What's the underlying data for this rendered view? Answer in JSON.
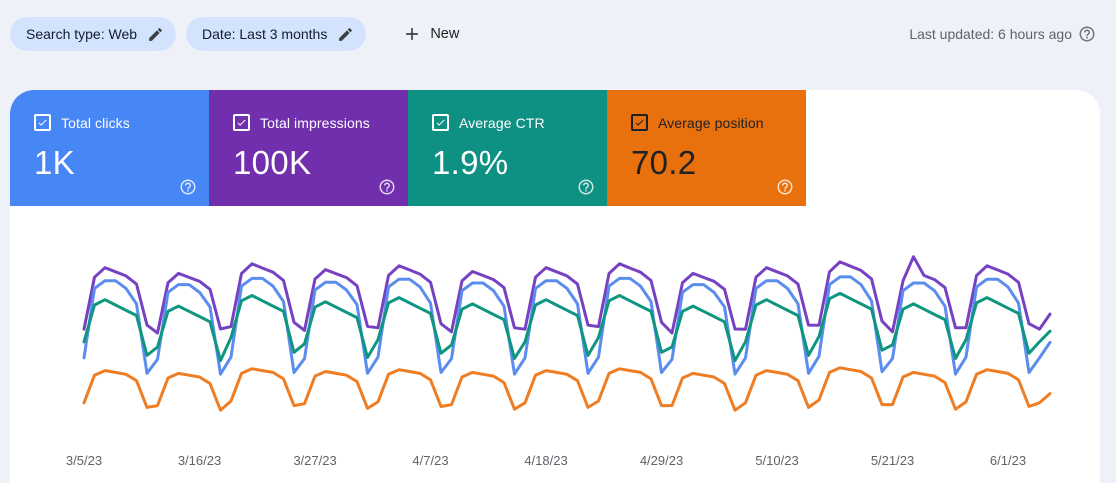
{
  "topbar": {
    "chips": [
      {
        "label": "Search type: Web"
      },
      {
        "label": "Date: Last 3 months"
      }
    ],
    "new_button": {
      "label": "New"
    },
    "last_updated": "Last updated: 6 hours ago"
  },
  "icons": {
    "help_glyph": "?"
  },
  "metric_cards": [
    {
      "id": "clicks",
      "label": "Total clicks",
      "value": "1K",
      "color": "#4786f5",
      "text_color": "#ffffff",
      "checked": true
    },
    {
      "id": "impressions",
      "label": "Total impressions",
      "value": "100K",
      "color": "#712fae",
      "text_color": "#ffffff",
      "checked": true
    },
    {
      "id": "ctr",
      "label": "Average CTR",
      "value": "1.9%",
      "color": "#0e9082",
      "text_color": "#ffffff",
      "checked": true
    },
    {
      "id": "position",
      "label": "Average position",
      "value": "70.2",
      "color": "#e8710d",
      "text_color": "#202124",
      "checked": true
    }
  ],
  "chart_data": {
    "type": "line",
    "x_start": "3/5/23",
    "x_end": "6/5/23",
    "interval": "daily",
    "points": 93,
    "x_ticks": [
      "3/5/23",
      "3/16/23",
      "3/27/23",
      "4/7/23",
      "4/18/23",
      "4/29/23",
      "5/10/23",
      "5/21/23",
      "6/1/23"
    ],
    "grid": false,
    "legend_position": "none",
    "series": [
      {
        "id": "impressions",
        "name": "Total impressions",
        "color": "#7642c2",
        "unit": "impressions",
        "values": [
          950,
          1330,
          1400,
          1370,
          1340,
          1280,
          980,
          922,
          1290,
          1358,
          1329,
          1300,
          1242,
          951,
          969,
          1357,
          1428,
          1397,
          1367,
          1306,
          1000,
          941,
          1317,
          1386,
          1356,
          1327,
          1267,
          970,
          960,
          1343,
          1414,
          1384,
          1353,
          1293,
          990,
          931,
          1303,
          1372,
          1343,
          1313,
          1254,
          960,
          950,
          1330,
          1400,
          1370,
          1340,
          1280,
          980,
          969,
          1357,
          1428,
          1397,
          1367,
          1306,
          1000,
          922,
          1290,
          1358,
          1329,
          1300,
          1242,
          951,
          950,
          1330,
          1400,
          1370,
          1340,
          1280,
          980,
          979,
          1370,
          1442,
          1411,
          1380,
          1318,
          1009,
          931,
          1303,
          1480,
          1343,
          1313,
          1254,
          960,
          960,
          1343,
          1414,
          1384,
          1353,
          1293,
          990,
          950,
          1060
        ]
      },
      {
        "id": "clicks",
        "name": "Total clicks",
        "color": "#5b8def",
        "unit": "clicks",
        "values": [
          7,
          16,
          17,
          17,
          16,
          14,
          5,
          6.8,
          15.5,
          16.5,
          16.5,
          15.5,
          13.6,
          4.9,
          7.1,
          16.3,
          17.3,
          17.3,
          16.3,
          14.3,
          5.1,
          6.9,
          15.8,
          16.8,
          16.8,
          15.8,
          13.9,
          5,
          7.1,
          16.2,
          17.2,
          17.2,
          16.2,
          14.1,
          5.1,
          6.9,
          15.7,
          16.7,
          16.7,
          15.7,
          13.7,
          4.9,
          7,
          16,
          17,
          17,
          16,
          14,
          5,
          7.1,
          16.3,
          17.3,
          17.3,
          16.3,
          14.3,
          5.1,
          6.8,
          15.5,
          16.5,
          16.5,
          15.5,
          13.6,
          4.9,
          7,
          16,
          17,
          17,
          16,
          14,
          5,
          7.2,
          16.5,
          17.5,
          17.5,
          16.5,
          14.4,
          5.2,
          6.9,
          15.7,
          16.7,
          16.7,
          15.7,
          13.7,
          4.9,
          7.1,
          16.2,
          17.2,
          17.2,
          16.2,
          14.1,
          5.1,
          7,
          9
        ]
      },
      {
        "id": "ctr",
        "name": "Average CTR",
        "color": "#0f9681",
        "unit": "%",
        "values": [
          1.75,
          2.1,
          2.15,
          2.1,
          2.05,
          2,
          1.62,
          1.7,
          2.04,
          2.09,
          2.04,
          1.99,
          1.94,
          1.57,
          1.79,
          2.14,
          2.19,
          2.14,
          2.09,
          2.04,
          1.65,
          1.73,
          2.08,
          2.13,
          2.08,
          2.03,
          1.98,
          1.6,
          1.77,
          2.12,
          2.17,
          2.12,
          2.07,
          2.02,
          1.64,
          1.72,
          2.06,
          2.11,
          2.06,
          2.01,
          1.96,
          1.59,
          1.75,
          2.1,
          2.15,
          2.1,
          2.05,
          2,
          1.62,
          1.79,
          2.14,
          2.19,
          2.14,
          2.09,
          2.04,
          1.65,
          1.7,
          2.04,
          2.09,
          2.04,
          1.99,
          1.94,
          1.57,
          1.75,
          2.1,
          2.15,
          2.1,
          2.05,
          2,
          1.62,
          1.8,
          2.16,
          2.21,
          2.16,
          2.11,
          2.06,
          1.67,
          1.72,
          2.06,
          2.11,
          2.06,
          2.01,
          1.96,
          1.59,
          1.77,
          2.12,
          2.17,
          2.12,
          2.07,
          2.02,
          1.64,
          1.75,
          1.85
        ]
      },
      {
        "id": "position",
        "name": "Average position",
        "color": "#ee7d23",
        "unit": "position",
        "invert": true,
        "values": [
          72.5,
          69.5,
          69,
          69.2,
          69.4,
          70.1,
          73,
          72.8,
          69.8,
          69.3,
          69.5,
          69.7,
          70.4,
          73.3,
          72.3,
          69.3,
          68.8,
          69,
          69.2,
          69.9,
          72.8,
          72.6,
          69.6,
          69.1,
          69.3,
          69.5,
          70.2,
          73.1,
          72.4,
          69.4,
          68.9,
          69.1,
          69.3,
          70,
          72.9,
          72.7,
          69.7,
          69.2,
          69.4,
          69.6,
          70.3,
          73.2,
          72.5,
          69.5,
          69,
          69.2,
          69.4,
          70.1,
          73,
          72.3,
          69.3,
          68.8,
          69,
          69.2,
          69.9,
          72.8,
          72.8,
          69.8,
          69.3,
          69.5,
          69.7,
          70.4,
          73.3,
          72.5,
          69.5,
          69,
          69.2,
          69.4,
          70.1,
          73,
          72.2,
          69.2,
          68.7,
          68.9,
          69.1,
          69.8,
          72.7,
          72.7,
          69.7,
          69.2,
          69.4,
          69.6,
          70.3,
          73.2,
          72.4,
          69.4,
          68.9,
          69.1,
          69.3,
          70,
          72.9,
          72.5,
          71.5
        ]
      }
    ]
  }
}
